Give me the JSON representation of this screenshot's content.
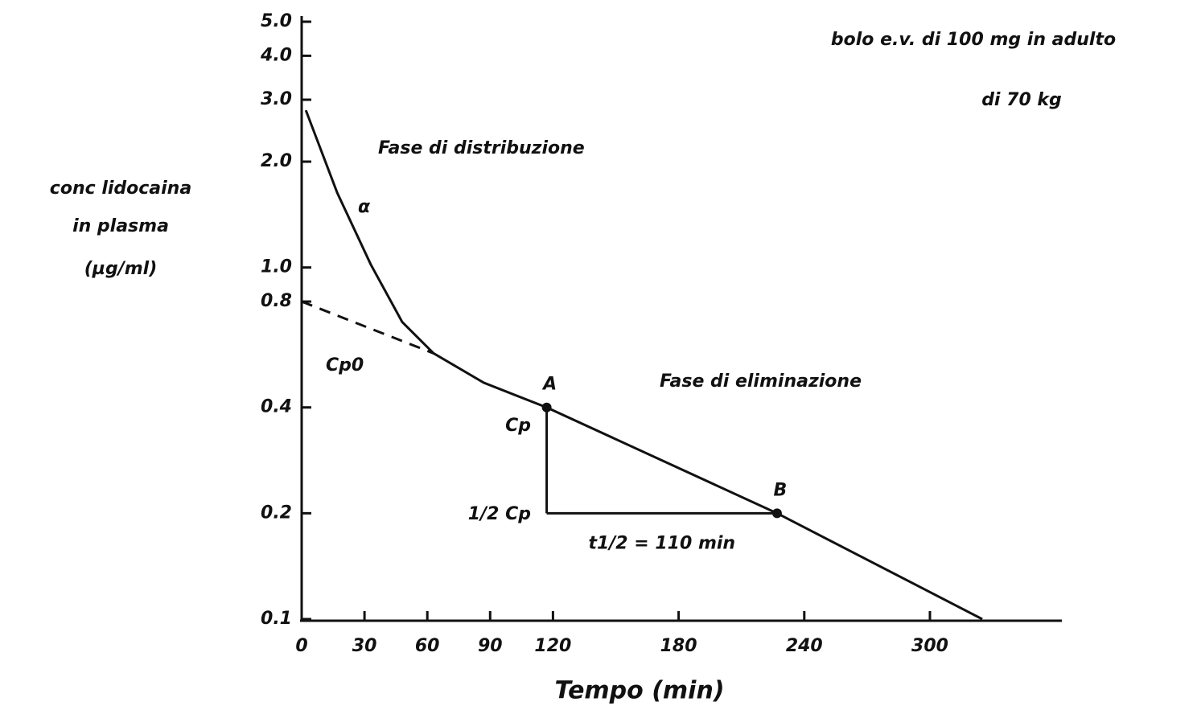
{
  "chart_data": {
    "type": "line",
    "title": "bolo e.v. di 100 mg in adulto",
    "subtitle": "di 70 kg",
    "ylabel": [
      "conc lidocaina",
      "in plasma",
      "(µg/ml)"
    ],
    "xlabel": "Tempo (min)",
    "log_y": true,
    "xlim": [
      0,
      363
    ],
    "ylim": [
      0.1,
      5
    ],
    "xticks": [
      0,
      30,
      60,
      90,
      120,
      180,
      240,
      300
    ],
    "yticks": [
      {
        "value": 5,
        "label": "5.0"
      },
      {
        "value": 4,
        "label": "4.0"
      },
      {
        "value": 3,
        "label": "3.0"
      },
      {
        "value": 2,
        "label": "2.0"
      },
      {
        "value": 1,
        "label": "1.0"
      },
      0.8,
      0.4,
      0.2,
      0.1
    ],
    "series": [
      {
        "color": "#111111",
        "dashed": false,
        "x": [
          2,
          17,
          33,
          48,
          63,
          87,
          117,
          227,
          325
        ],
        "values": [
          2.8,
          1.63,
          1.02,
          0.7,
          0.57,
          0.47,
          0.4,
          0.2,
          0.1
        ]
      },
      {
        "color": "#111111",
        "dashed": true,
        "x": [
          0,
          63
        ],
        "values": [
          0.8,
          0.57
        ]
      }
    ],
    "points": [
      {
        "label": "A",
        "x": 117,
        "y": 0.4
      },
      {
        "label": "B",
        "x": 227,
        "y": 0.2
      }
    ],
    "half_life": {
      "label": "t1/2 = 110 min",
      "value": 110
    },
    "annotations": [
      "Fase di distribuzione",
      "α",
      "Cp0",
      "Fase di eliminazione",
      "Cp",
      "1/2 Cp"
    ]
  }
}
